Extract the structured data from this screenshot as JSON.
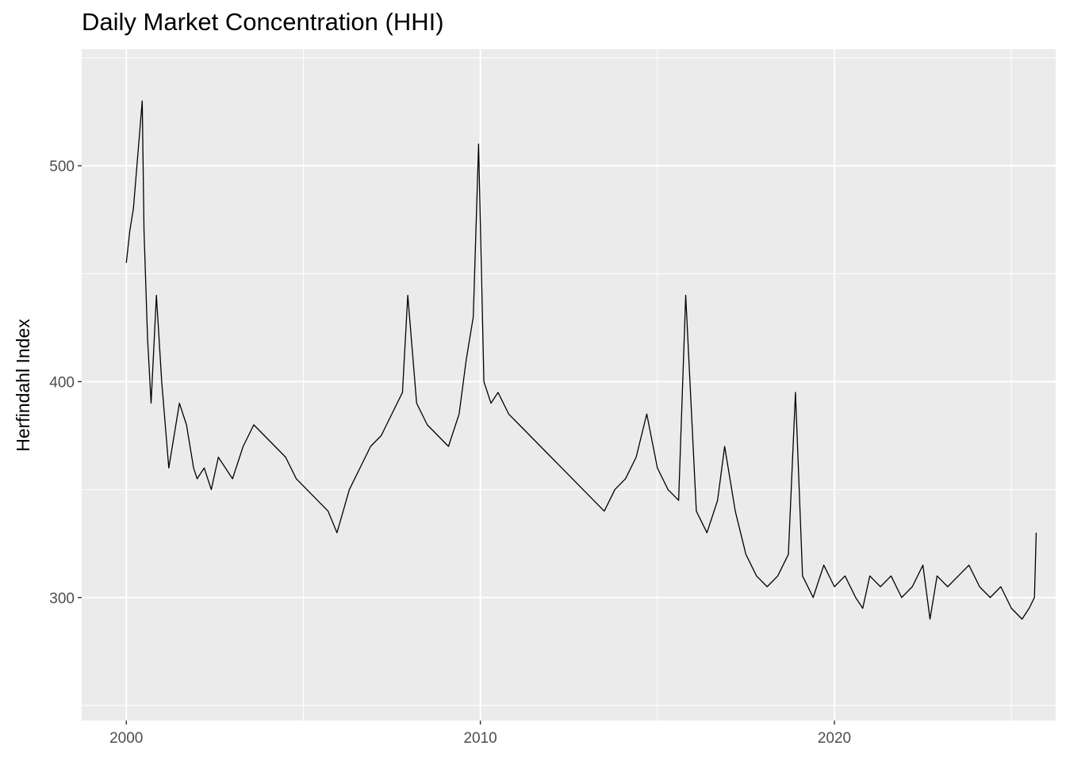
{
  "chart_data": {
    "type": "line",
    "title": "Daily Market Concentration (HHI)",
    "xlabel": "",
    "ylabel": "Herfindahl Index",
    "xlim": [
      1998.74,
      2026.25
    ],
    "ylim": [
      243,
      554
    ],
    "x_ticks": [
      2000,
      2010,
      2020
    ],
    "y_ticks": [
      300,
      400,
      500
    ],
    "grid": true,
    "legend": "none",
    "series": [
      {
        "x": [
          2000.0,
          2000.1,
          2000.2,
          2000.3,
          2000.45,
          2000.5,
          2000.6,
          2000.7,
          2000.85,
          2001.0,
          2001.1,
          2001.2,
          2001.3,
          2001.5,
          2001.7,
          2001.9,
          2002.0,
          2002.2,
          2002.4,
          2002.6,
          2002.8,
          2003.0,
          2003.3,
          2003.6,
          2003.9,
          2004.2,
          2004.5,
          2004.8,
          2005.1,
          2005.4,
          2005.7,
          2005.95,
          2006.3,
          2006.6,
          2006.9,
          2007.2,
          2007.5,
          2007.8,
          2007.95,
          2008.2,
          2008.5,
          2008.8,
          2009.1,
          2009.4,
          2009.6,
          2009.8,
          2009.95,
          2010.1,
          2010.3,
          2010.5,
          2010.8,
          2011.1,
          2011.4,
          2011.7,
          2012.0,
          2012.3,
          2012.6,
          2012.9,
          2013.2,
          2013.5,
          2013.8,
          2014.1,
          2014.4,
          2014.7,
          2015.0,
          2015.3,
          2015.6,
          2015.8,
          2016.1,
          2016.4,
          2016.7,
          2016.9,
          2017.2,
          2017.5,
          2017.8,
          2018.1,
          2018.4,
          2018.7,
          2018.9,
          2019.1,
          2019.4,
          2019.7,
          2020.0,
          2020.3,
          2020.6,
          2020.8,
          2021.0,
          2021.3,
          2021.6,
          2021.9,
          2022.2,
          2022.5,
          2022.7,
          2022.9,
          2023.2,
          2023.5,
          2023.8,
          2024.1,
          2024.4,
          2024.7,
          2025.0,
          2025.3,
          2025.5,
          2025.65,
          2025.7
        ],
        "y": [
          455,
          470,
          480,
          500,
          530,
          470,
          420,
          390,
          440,
          400,
          380,
          360,
          370,
          390,
          380,
          360,
          355,
          360,
          350,
          365,
          360,
          355,
          370,
          380,
          375,
          370,
          365,
          355,
          350,
          345,
          340,
          330,
          350,
          360,
          370,
          375,
          385,
          395,
          440,
          390,
          380,
          375,
          370,
          385,
          410,
          430,
          510,
          400,
          390,
          395,
          385,
          380,
          375,
          370,
          365,
          360,
          355,
          350,
          345,
          340,
          350,
          355,
          365,
          385,
          360,
          350,
          345,
          440,
          340,
          330,
          345,
          370,
          340,
          320,
          310,
          305,
          310,
          320,
          395,
          310,
          300,
          315,
          305,
          310,
          300,
          295,
          310,
          305,
          310,
          300,
          305,
          315,
          290,
          310,
          305,
          310,
          315,
          305,
          300,
          305,
          295,
          290,
          295,
          300,
          330
        ]
      }
    ]
  }
}
